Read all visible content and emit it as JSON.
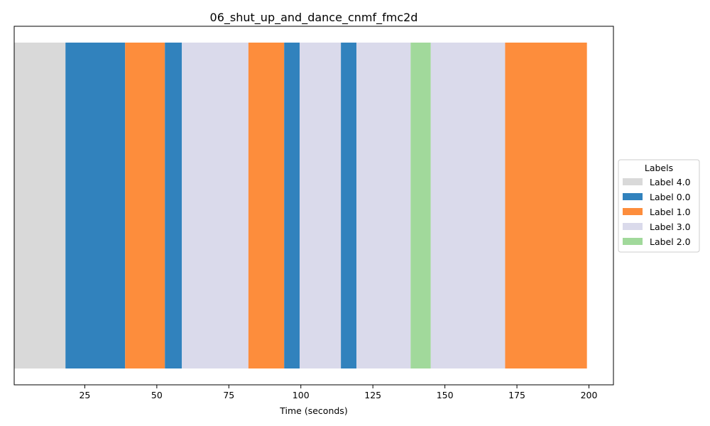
{
  "chart_data": {
    "type": "bar",
    "orientation": "horizontal-timeline",
    "title": "06_shut_up_and_dance_cnmf_fmc2d",
    "xlabel": "Time (seconds)",
    "ylabel": "",
    "xlim": [
      0.5,
      208.5
    ],
    "xticks": [
      25,
      50,
      75,
      100,
      125,
      150,
      175,
      200
    ],
    "grid": false,
    "legend": {
      "title": "Labels",
      "placement": "center-right outside",
      "entries": [
        {
          "name": "Label 4.0",
          "color": "#d9d9d9"
        },
        {
          "name": "Label 0.0",
          "color": "#3182bd"
        },
        {
          "name": "Label 1.0",
          "color": "#fd8d3c"
        },
        {
          "name": "Label 3.0",
          "color": "#dadaeb"
        },
        {
          "name": "Label 2.0",
          "color": "#a1d99b"
        }
      ]
    },
    "segments": [
      {
        "label": "Label 4.0",
        "start": 0.5,
        "end": 18.3
      },
      {
        "label": "Label 0.0",
        "start": 18.3,
        "end": 39.0
      },
      {
        "label": "Label 1.0",
        "start": 39.0,
        "end": 52.8
      },
      {
        "label": "Label 0.0",
        "start": 52.8,
        "end": 58.7
      },
      {
        "label": "Label 3.0",
        "start": 58.7,
        "end": 81.8
      },
      {
        "label": "Label 1.0",
        "start": 81.8,
        "end": 94.2
      },
      {
        "label": "Label 0.0",
        "start": 94.2,
        "end": 99.6
      },
      {
        "label": "Label 3.0",
        "start": 99.6,
        "end": 113.9
      },
      {
        "label": "Label 0.0",
        "start": 113.9,
        "end": 119.3
      },
      {
        "label": "Label 3.0",
        "start": 119.3,
        "end": 138.1
      },
      {
        "label": "Label 2.0",
        "start": 138.1,
        "end": 145.1
      },
      {
        "label": "Label 3.0",
        "start": 145.1,
        "end": 170.9
      },
      {
        "label": "Label 1.0",
        "start": 170.9,
        "end": 199.3
      }
    ]
  }
}
